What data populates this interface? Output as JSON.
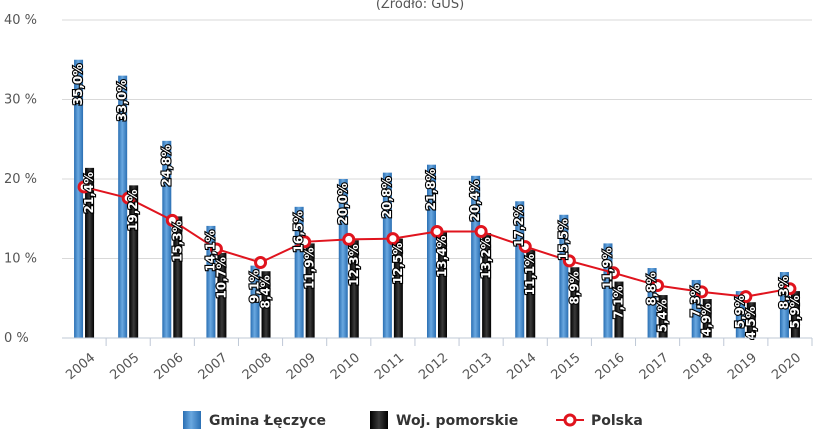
{
  "chart_data": {
    "type": "bar",
    "subtitle": "(Źródło: GUS)",
    "categories": [
      "2004",
      "2005",
      "2006",
      "2007",
      "2008",
      "2009",
      "2010",
      "2011",
      "2012",
      "2013",
      "2014",
      "2015",
      "2016",
      "2017",
      "2018",
      "2019",
      "2020"
    ],
    "ylim": [
      0,
      40
    ],
    "yticks": [
      0,
      10,
      20,
      30,
      40
    ],
    "ytick_labels": [
      "0 %",
      "10 %",
      "20 %",
      "30 %",
      "40 %"
    ],
    "grid": true,
    "legend_position": "bottom",
    "series": [
      {
        "name": "Gmina Łęczyce",
        "kind": "bar",
        "color": "#3d85c6",
        "values": [
          35.0,
          33.0,
          24.8,
          14.1,
          9.1,
          16.5,
          20.0,
          20.8,
          21.8,
          20.4,
          17.2,
          15.5,
          11.9,
          8.8,
          7.3,
          5.9,
          8.3
        ],
        "labels": [
          "35,0%",
          "33,0%",
          "24,8%",
          "14,1%",
          "9,1%",
          "16,5%",
          "20,0%",
          "20,8%",
          "21,8%",
          "20,4%",
          "17,2%",
          "15,5%",
          "11,9%",
          "8,8%",
          "7,3%",
          "5,9%",
          "8,3%"
        ]
      },
      {
        "name": "Woj. pomorskie",
        "kind": "bar",
        "color": "#111111",
        "values": [
          21.4,
          19.2,
          15.3,
          10.7,
          8.4,
          11.9,
          12.3,
          12.5,
          13.4,
          13.2,
          11.1,
          8.9,
          7.1,
          5.4,
          4.9,
          4.5,
          5.9
        ],
        "labels": [
          "21,4%",
          "19,2%",
          "15,3%",
          "10,7%",
          "8,4%",
          "11,9%",
          "12,3%",
          "12,5%",
          "13,4%",
          "13,2%",
          "11,1%",
          "8,9%",
          "7,1%",
          "5,4%",
          "4,9%",
          "4,5%",
          "5,9%"
        ]
      },
      {
        "name": "Polska",
        "kind": "line",
        "color": "#e0141e",
        "values": [
          19.0,
          17.6,
          14.8,
          11.2,
          9.5,
          12.1,
          12.4,
          12.5,
          13.4,
          13.4,
          11.5,
          9.7,
          8.2,
          6.6,
          5.8,
          5.2,
          6.2
        ]
      }
    ]
  }
}
